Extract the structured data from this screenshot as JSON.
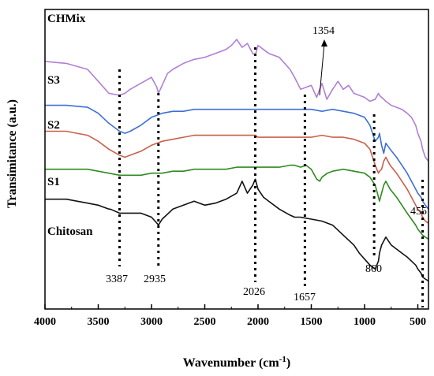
{
  "chart_data": {
    "type": "line",
    "xlabel": "Wavenumber (cm",
    "xlabel_sup": "-1",
    "xlabel_close": ")",
    "ylabel": "Transimitance (a.u.)",
    "xlim": [
      4000,
      400
    ],
    "x_reversed": true,
    "xticks": [
      "4000",
      "3500",
      "3000",
      "2500",
      "2000",
      "1500",
      "1000",
      "500"
    ],
    "xtick_values": [
      4000,
      3500,
      3000,
      2500,
      2000,
      1500,
      1000,
      500
    ],
    "y_tick_labels": false,
    "grid": false,
    "series": [
      {
        "name": "CHMix",
        "color": "#b07fd6",
        "x": [
          4000,
          3800,
          3600,
          3500,
          3400,
          3300,
          3250,
          3200,
          3100,
          3000,
          2950,
          2935,
          2900,
          2850,
          2800,
          2700,
          2600,
          2500,
          2400,
          2300,
          2250,
          2200,
          2150,
          2100,
          2050,
          2026,
          2000,
          1950,
          1900,
          1800,
          1700,
          1657,
          1600,
          1550,
          1500,
          1450,
          1400,
          1354,
          1300,
          1250,
          1200,
          1150,
          1100,
          1000,
          950,
          900,
          870,
          860,
          840,
          800,
          750,
          700,
          650,
          600,
          560,
          520,
          500,
          470,
          455,
          430,
          400
        ],
        "y": [
          84,
          83,
          80,
          74,
          68,
          67,
          68,
          70,
          73,
          76,
          71,
          68,
          72,
          78,
          80,
          83,
          85,
          86,
          88,
          90,
          92,
          95,
          91,
          93,
          88,
          87,
          92,
          90,
          88,
          86,
          80,
          76,
          70,
          71,
          72,
          66,
          73,
          65,
          70,
          74,
          70,
          72,
          68,
          66,
          64,
          65,
          68,
          67,
          66,
          64,
          62,
          61,
          60,
          58,
          56,
          52,
          48,
          44,
          40,
          36,
          34
        ]
      },
      {
        "name": "S3",
        "color": "#3d6fd4",
        "x": [
          4000,
          3800,
          3600,
          3500,
          3400,
          3300,
          3250,
          3200,
          3100,
          3000,
          2900,
          2800,
          2700,
          2600,
          2500,
          2400,
          2300,
          2200,
          2100,
          2026,
          2000,
          1900,
          1800,
          1700,
          1657,
          1600,
          1500,
          1400,
          1300,
          1200,
          1100,
          1000,
          950,
          900,
          870,
          860,
          840,
          820,
          800,
          760,
          700,
          650,
          600,
          560,
          520,
          500,
          470,
          455,
          430,
          400
        ],
        "y": [
          62,
          62,
          61,
          58,
          53,
          49,
          48,
          49,
          52,
          56,
          58,
          59,
          59,
          60,
          60,
          60,
          60,
          60,
          60,
          60,
          60,
          60,
          60,
          60,
          60,
          60,
          60,
          59,
          60,
          59,
          58,
          56,
          52,
          44,
          46,
          48,
          42,
          38,
          43,
          40,
          36,
          32,
          28,
          24,
          20,
          18,
          16,
          14,
          12,
          10
        ]
      },
      {
        "name": "S2",
        "color": "#c8604a",
        "x": [
          4000,
          3800,
          3700,
          3600,
          3500,
          3400,
          3300,
          3250,
          3200,
          3100,
          3000,
          2900,
          2800,
          2700,
          2600,
          2500,
          2400,
          2300,
          2200,
          2100,
          2026,
          2000,
          1900,
          1800,
          1700,
          1657,
          1600,
          1500,
          1400,
          1300,
          1200,
          1100,
          1000,
          950,
          900,
          870,
          860,
          840,
          820,
          800,
          760,
          700,
          650,
          600,
          560,
          520,
          500,
          470,
          455,
          430,
          400
        ],
        "y": [
          49,
          49,
          48,
          47,
          44,
          40,
          37,
          36,
          37,
          39,
          42,
          44,
          45,
          46,
          47,
          47,
          47,
          47,
          47,
          47,
          47,
          46,
          46,
          46,
          46,
          46,
          46,
          46,
          47,
          46,
          46,
          45,
          43,
          40,
          32,
          28,
          29,
          30,
          34,
          36,
          32,
          28,
          24,
          20,
          16,
          12,
          10,
          8,
          6,
          4,
          3
        ]
      },
      {
        "name": "S1",
        "color": "#2e8b1e",
        "x": [
          4000,
          3800,
          3600,
          3500,
          3400,
          3300,
          3200,
          3100,
          3000,
          2900,
          2800,
          2700,
          2600,
          2500,
          2400,
          2300,
          2200,
          2100,
          2026,
          2000,
          1900,
          1800,
          1700,
          1657,
          1600,
          1550,
          1500,
          1450,
          1420,
          1400,
          1350,
          1300,
          1200,
          1100,
          1000,
          950,
          900,
          870,
          860,
          840,
          820,
          800,
          760,
          700,
          650,
          600,
          560,
          520,
          500,
          470,
          455,
          430,
          400
        ],
        "y": [
          30,
          30,
          30,
          29,
          28,
          27,
          27,
          27,
          28,
          28,
          29,
          29,
          30,
          30,
          30,
          30,
          31,
          31,
          31,
          31,
          31,
          31,
          32,
          32,
          31,
          32,
          30,
          25,
          24,
          26,
          28,
          29,
          30,
          29,
          28,
          26,
          22,
          16,
          14,
          18,
          22,
          24,
          20,
          16,
          12,
          8,
          5,
          2,
          0,
          -2,
          -3,
          -4,
          -5
        ]
      },
      {
        "name": "Chitosan",
        "color": "#111111",
        "x": [
          4000,
          3800,
          3700,
          3600,
          3500,
          3400,
          3387,
          3300,
          3200,
          3100,
          3000,
          2950,
          2935,
          2900,
          2800,
          2700,
          2600,
          2500,
          2400,
          2300,
          2200,
          2150,
          2100,
          2050,
          2026,
          2000,
          1950,
          1900,
          1800,
          1700,
          1657,
          1600,
          1500,
          1400,
          1300,
          1200,
          1100,
          1050,
          1000,
          950,
          900,
          870,
          860,
          840,
          800,
          750,
          700,
          650,
          600,
          560,
          520,
          500,
          470,
          455,
          430,
          400
        ],
        "y": [
          15,
          15,
          14,
          13,
          12,
          10,
          10,
          8,
          8,
          8,
          6,
          3,
          2,
          5,
          10,
          12,
          14,
          12,
          13,
          15,
          18,
          24,
          18,
          22,
          25,
          20,
          16,
          14,
          10,
          7,
          6,
          6,
          5,
          4,
          2,
          -3,
          -8,
          -12,
          -15,
          -18,
          -20,
          -16,
          -12,
          -8,
          -4,
          -8,
          -10,
          -12,
          -14,
          -16,
          -18,
          -20,
          -22,
          -24,
          -25,
          -26
        ]
      }
    ],
    "annotations": [
      {
        "text": "3387",
        "x": 3300
      },
      {
        "text": "2935",
        "x": 2935
      },
      {
        "text": "2026",
        "x": 2026
      },
      {
        "text": "1657",
        "x": 1560
      },
      {
        "text": "1354",
        "x": 1440
      },
      {
        "text": "860",
        "x": 910
      },
      {
        "text": "455",
        "x": 455
      }
    ]
  }
}
